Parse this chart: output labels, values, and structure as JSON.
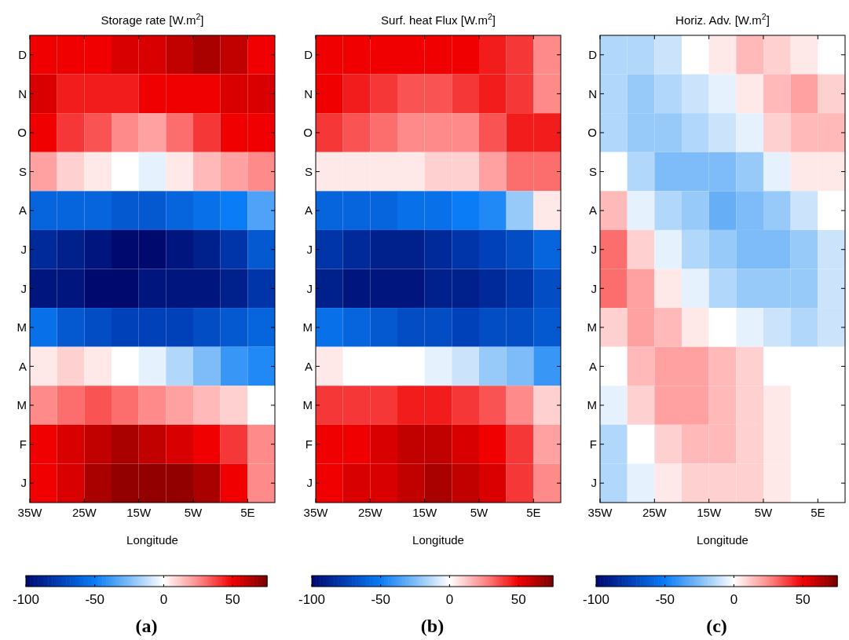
{
  "chart_data": [
    {
      "type": "heatmap",
      "title": "Storage rate [W.m$^{2}$]",
      "xlabel": "Longitude",
      "annotations": [
        "(a)"
      ],
      "x": [
        -32.5,
        -27.5,
        -22.5,
        -17.5,
        -12.5,
        -7.5,
        -2.5,
        2.5,
        7.5
      ],
      "y_categories": [
        "D",
        "N",
        "O",
        "S",
        "A",
        "J",
        "J",
        "M",
        "A",
        "M",
        "F",
        "J"
      ],
      "xlim": [
        -35,
        10
      ],
      "xticks": [
        {
          "value": -35,
          "label": "35W"
        },
        {
          "value": -25,
          "label": "25W"
        },
        {
          "value": -15,
          "label": "15W"
        },
        {
          "value": -5,
          "label": "5W"
        },
        {
          "value": 5,
          "label": "5E"
        }
      ],
      "clim": [
        -100,
        75
      ],
      "cticks": [
        -100,
        -50,
        0,
        50
      ],
      "cells": [
        [
          50,
          50,
          50,
          55,
          55,
          60,
          65,
          60,
          50
        ],
        [
          55,
          45,
          45,
          45,
          50,
          50,
          50,
          55,
          55
        ],
        [
          50,
          40,
          35,
          25,
          20,
          30,
          40,
          50,
          50
        ],
        [
          20,
          10,
          5,
          0,
          -5,
          5,
          15,
          20,
          25
        ],
        [
          -60,
          -60,
          -60,
          -65,
          -65,
          -60,
          -55,
          -50,
          -35
        ],
        [
          -85,
          -90,
          -95,
          -100,
          -100,
          -95,
          -90,
          -80,
          -65
        ],
        [
          -95,
          -95,
          -100,
          -100,
          -95,
          -95,
          -95,
          -90,
          -80
        ],
        [
          -55,
          -65,
          -70,
          -75,
          -75,
          -75,
          -70,
          -65,
          -60
        ],
        [
          5,
          10,
          5,
          0,
          -5,
          -15,
          -25,
          -40,
          -45
        ],
        [
          25,
          30,
          35,
          30,
          25,
          20,
          15,
          10,
          0
        ],
        [
          50,
          55,
          60,
          65,
          60,
          55,
          50,
          40,
          25
        ],
        [
          50,
          55,
          65,
          70,
          70,
          70,
          65,
          50,
          25
        ]
      ]
    },
    {
      "type": "heatmap",
      "title": "Surf. heat Flux [W.m$^{2}$]",
      "xlabel": "Longitude",
      "annotations": [
        "(b)"
      ],
      "x": [
        -32.5,
        -27.5,
        -22.5,
        -17.5,
        -12.5,
        -7.5,
        -2.5,
        2.5,
        7.5
      ],
      "y_categories": [
        "D",
        "N",
        "O",
        "S",
        "A",
        "J",
        "J",
        "M",
        "A",
        "M",
        "F",
        "J"
      ],
      "xlim": [
        -35,
        10
      ],
      "xticks": [
        {
          "value": -35,
          "label": "35W"
        },
        {
          "value": -25,
          "label": "25W"
        },
        {
          "value": -15,
          "label": "15W"
        },
        {
          "value": -5,
          "label": "5W"
        },
        {
          "value": 5,
          "label": "5E"
        }
      ],
      "clim": [
        -100,
        75
      ],
      "cticks": [
        -100,
        -50,
        0,
        50
      ],
      "cells": [
        [
          50,
          50,
          50,
          50,
          50,
          50,
          45,
          40,
          25
        ],
        [
          50,
          45,
          40,
          35,
          35,
          40,
          45,
          40,
          25
        ],
        [
          40,
          35,
          30,
          25,
          25,
          25,
          35,
          45,
          45
        ],
        [
          5,
          5,
          5,
          5,
          10,
          10,
          20,
          30,
          30
        ],
        [
          -60,
          -60,
          -60,
          -55,
          -55,
          -50,
          -45,
          -20,
          5
        ],
        [
          -80,
          -85,
          -90,
          -90,
          -85,
          -80,
          -75,
          -70,
          -60
        ],
        [
          -90,
          -95,
          -95,
          -95,
          -90,
          -90,
          -85,
          -80,
          -70
        ],
        [
          -55,
          -60,
          -65,
          -70,
          -70,
          -75,
          -70,
          -70,
          -65
        ],
        [
          5,
          0,
          0,
          0,
          -5,
          -10,
          -20,
          -25,
          -40
        ],
        [
          40,
          40,
          40,
          45,
          45,
          40,
          35,
          25,
          10
        ],
        [
          50,
          50,
          55,
          60,
          60,
          55,
          50,
          40,
          20
        ],
        [
          50,
          55,
          55,
          60,
          65,
          60,
          55,
          40,
          25
        ]
      ]
    },
    {
      "type": "heatmap",
      "title": "Horiz. Adv. [W.m$^{2}$]",
      "xlabel": "Longitude",
      "annotations": [
        "(c)"
      ],
      "x": [
        -32.5,
        -27.5,
        -22.5,
        -17.5,
        -12.5,
        -7.5,
        -2.5,
        2.5,
        7.5
      ],
      "y_categories": [
        "D",
        "N",
        "O",
        "S",
        "A",
        "J",
        "J",
        "M",
        "A",
        "M",
        "F",
        "J"
      ],
      "xlim": [
        -35,
        10
      ],
      "xticks": [
        {
          "value": -35,
          "label": "35W"
        },
        {
          "value": -25,
          "label": "25W"
        },
        {
          "value": -15,
          "label": "15W"
        },
        {
          "value": -5,
          "label": "5W"
        },
        {
          "value": 5,
          "label": "5E"
        }
      ],
      "clim": [
        -100,
        75
      ],
      "cticks": [
        -100,
        -50,
        0,
        50
      ],
      "cells": [
        [
          -15,
          -15,
          -10,
          0,
          5,
          15,
          10,
          5,
          0
        ],
        [
          -15,
          -20,
          -15,
          -10,
          -5,
          5,
          15,
          20,
          10
        ],
        [
          -15,
          -20,
          -20,
          -15,
          -10,
          -5,
          10,
          15,
          15
        ],
        [
          0,
          -15,
          -25,
          -25,
          -25,
          -20,
          -5,
          5,
          5
        ],
        [
          15,
          -5,
          -15,
          -20,
          -30,
          -25,
          -20,
          -10,
          0
        ],
        [
          30,
          10,
          -5,
          -15,
          -20,
          -25,
          -25,
          -20,
          -10
        ],
        [
          30,
          20,
          5,
          -5,
          -15,
          -20,
          -20,
          -20,
          -10
        ],
        [
          10,
          20,
          15,
          5,
          0,
          -5,
          -10,
          -15,
          -10
        ],
        [
          0,
          15,
          20,
          20,
          15,
          10,
          0,
          0,
          0
        ],
        [
          -5,
          10,
          20,
          20,
          15,
          10,
          5,
          0,
          0
        ],
        [
          -15,
          0,
          10,
          15,
          15,
          10,
          5,
          0,
          0
        ],
        [
          -15,
          -5,
          5,
          10,
          10,
          10,
          5,
          0,
          0
        ]
      ]
    }
  ]
}
